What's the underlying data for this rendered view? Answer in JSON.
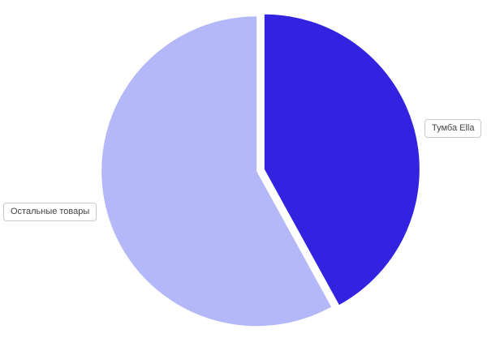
{
  "page": {
    "background_color": "#ffffff"
  },
  "chart_data": {
    "type": "pie",
    "title": "",
    "legend_position": "none",
    "labels_outside": true,
    "start_angle_deg": 0,
    "slices": [
      {
        "label": "Тумба Ella",
        "value": 42,
        "color": "#3322e0"
      },
      {
        "label": "Остальные товары",
        "value": 58,
        "color": "#b5b8f8"
      }
    ]
  }
}
